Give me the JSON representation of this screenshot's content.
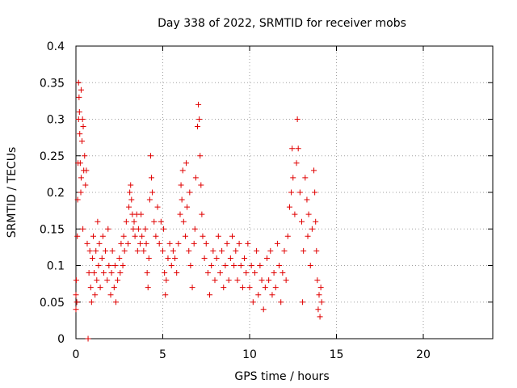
{
  "chart_data": {
    "type": "scatter",
    "title": "Day 338 of 2022, SRMTID for receiver mobs",
    "xlabel": "GPS time / hours",
    "ylabel": "SRMTID / TECUs",
    "xlim": [
      0,
      24
    ],
    "ylim": [
      0,
      0.4
    ],
    "xticks": [
      "0",
      "5",
      "10",
      "15",
      "20"
    ],
    "xtick_values": [
      0,
      5,
      10,
      15,
      20
    ],
    "yticks": [
      "0",
      "0.05",
      "0.1",
      "0.15",
      "0.2",
      "0.25",
      "0.3",
      "0.35",
      "0.4"
    ],
    "ytick_values": [
      0,
      0.05,
      0.1,
      0.15,
      0.2,
      0.25,
      0.3,
      0.35,
      0.4
    ],
    "grid": true,
    "marker": "+",
    "color": "#e00000",
    "series": [
      {
        "name": "SRMTID",
        "points": [
          [
            0.0,
            0.04
          ],
          [
            0.0,
            0.06
          ],
          [
            0.02,
            0.08
          ],
          [
            0.05,
            0.05
          ],
          [
            0.08,
            0.14
          ],
          [
            0.1,
            0.19
          ],
          [
            0.12,
            0.24
          ],
          [
            0.15,
            0.3
          ],
          [
            0.15,
            0.35
          ],
          [
            0.18,
            0.33
          ],
          [
            0.2,
            0.31
          ],
          [
            0.22,
            0.28
          ],
          [
            0.25,
            0.24
          ],
          [
            0.28,
            0.2
          ],
          [
            0.3,
            0.22
          ],
          [
            0.3,
            0.34
          ],
          [
            0.35,
            0.27
          ],
          [
            0.38,
            0.3
          ],
          [
            0.4,
            0.15
          ],
          [
            0.42,
            0.29
          ],
          [
            0.45,
            0.23
          ],
          [
            0.5,
            0.25
          ],
          [
            0.55,
            0.21
          ],
          [
            0.6,
            0.23
          ],
          [
            0.65,
            0.13
          ],
          [
            0.7,
            0.0
          ],
          [
            0.75,
            0.09
          ],
          [
            0.8,
            0.12
          ],
          [
            0.85,
            0.07
          ],
          [
            0.9,
            0.05
          ],
          [
            0.95,
            0.11
          ],
          [
            1.0,
            0.14
          ],
          [
            1.05,
            0.09
          ],
          [
            1.1,
            0.06
          ],
          [
            1.15,
            0.12
          ],
          [
            1.2,
            0.08
          ],
          [
            1.25,
            0.16
          ],
          [
            1.3,
            0.1
          ],
          [
            1.35,
            0.13
          ],
          [
            1.4,
            0.07
          ],
          [
            1.5,
            0.11
          ],
          [
            1.55,
            0.14
          ],
          [
            1.6,
            0.09
          ],
          [
            1.7,
            0.12
          ],
          [
            1.8,
            0.08
          ],
          [
            1.85,
            0.15
          ],
          [
            1.9,
            0.1
          ],
          [
            2.0,
            0.06
          ],
          [
            2.05,
            0.09
          ],
          [
            2.1,
            0.12
          ],
          [
            2.2,
            0.07
          ],
          [
            2.25,
            0.1
          ],
          [
            2.3,
            0.05
          ],
          [
            2.4,
            0.08
          ],
          [
            2.5,
            0.11
          ],
          [
            2.55,
            0.09
          ],
          [
            2.6,
            0.13
          ],
          [
            2.7,
            0.1
          ],
          [
            2.75,
            0.14
          ],
          [
            2.8,
            0.12
          ],
          [
            2.9,
            0.16
          ],
          [
            3.0,
            0.13
          ],
          [
            3.05,
            0.18
          ],
          [
            3.1,
            0.2
          ],
          [
            3.15,
            0.21
          ],
          [
            3.2,
            0.19
          ],
          [
            3.25,
            0.17
          ],
          [
            3.3,
            0.15
          ],
          [
            3.35,
            0.16
          ],
          [
            3.4,
            0.14
          ],
          [
            3.5,
            0.17
          ],
          [
            3.55,
            0.12
          ],
          [
            3.6,
            0.15
          ],
          [
            3.7,
            0.13
          ],
          [
            3.75,
            0.17
          ],
          [
            3.8,
            0.14
          ],
          [
            3.9,
            0.12
          ],
          [
            4.0,
            0.15
          ],
          [
            4.05,
            0.13
          ],
          [
            4.1,
            0.09
          ],
          [
            4.15,
            0.07
          ],
          [
            4.2,
            0.11
          ],
          [
            4.25,
            0.19
          ],
          [
            4.3,
            0.25
          ],
          [
            4.35,
            0.22
          ],
          [
            4.4,
            0.2
          ],
          [
            4.5,
            0.16
          ],
          [
            4.6,
            0.14
          ],
          [
            4.7,
            0.18
          ],
          [
            4.8,
            0.13
          ],
          [
            4.9,
            0.16
          ],
          [
            5.0,
            0.12
          ],
          [
            5.05,
            0.15
          ],
          [
            5.1,
            0.09
          ],
          [
            5.15,
            0.06
          ],
          [
            5.2,
            0.08
          ],
          [
            5.3,
            0.11
          ],
          [
            5.4,
            0.13
          ],
          [
            5.5,
            0.1
          ],
          [
            5.6,
            0.12
          ],
          [
            5.7,
            0.11
          ],
          [
            5.8,
            0.09
          ],
          [
            5.9,
            0.13
          ],
          [
            6.0,
            0.17
          ],
          [
            6.05,
            0.21
          ],
          [
            6.1,
            0.19
          ],
          [
            6.15,
            0.23
          ],
          [
            6.2,
            0.16
          ],
          [
            6.3,
            0.14
          ],
          [
            6.35,
            0.24
          ],
          [
            6.4,
            0.18
          ],
          [
            6.5,
            0.12
          ],
          [
            6.55,
            0.2
          ],
          [
            6.6,
            0.1
          ],
          [
            6.7,
            0.07
          ],
          [
            6.8,
            0.13
          ],
          [
            6.85,
            0.15
          ],
          [
            6.9,
            0.22
          ],
          [
            7.0,
            0.29
          ],
          [
            7.05,
            0.32
          ],
          [
            7.1,
            0.3
          ],
          [
            7.15,
            0.25
          ],
          [
            7.2,
            0.21
          ],
          [
            7.25,
            0.17
          ],
          [
            7.3,
            0.14
          ],
          [
            7.4,
            0.11
          ],
          [
            7.5,
            0.13
          ],
          [
            7.6,
            0.09
          ],
          [
            7.7,
            0.06
          ],
          [
            7.8,
            0.1
          ],
          [
            7.9,
            0.12
          ],
          [
            8.0,
            0.08
          ],
          [
            8.1,
            0.11
          ],
          [
            8.2,
            0.14
          ],
          [
            8.3,
            0.09
          ],
          [
            8.4,
            0.12
          ],
          [
            8.5,
            0.07
          ],
          [
            8.6,
            0.1
          ],
          [
            8.7,
            0.13
          ],
          [
            8.8,
            0.08
          ],
          [
            8.9,
            0.11
          ],
          [
            9.0,
            0.14
          ],
          [
            9.1,
            0.1
          ],
          [
            9.2,
            0.12
          ],
          [
            9.3,
            0.08
          ],
          [
            9.4,
            0.13
          ],
          [
            9.5,
            0.1
          ],
          [
            9.6,
            0.07
          ],
          [
            9.7,
            0.11
          ],
          [
            9.8,
            0.09
          ],
          [
            9.9,
            0.13
          ],
          [
            10.0,
            0.07
          ],
          [
            10.1,
            0.1
          ],
          [
            10.2,
            0.05
          ],
          [
            10.3,
            0.09
          ],
          [
            10.4,
            0.12
          ],
          [
            10.5,
            0.06
          ],
          [
            10.6,
            0.1
          ],
          [
            10.7,
            0.08
          ],
          [
            10.8,
            0.04
          ],
          [
            10.9,
            0.07
          ],
          [
            11.0,
            0.11
          ],
          [
            11.1,
            0.08
          ],
          [
            11.2,
            0.12
          ],
          [
            11.3,
            0.06
          ],
          [
            11.4,
            0.09
          ],
          [
            11.5,
            0.07
          ],
          [
            11.6,
            0.13
          ],
          [
            11.7,
            0.1
          ],
          [
            11.8,
            0.05
          ],
          [
            11.9,
            0.09
          ],
          [
            12.0,
            0.12
          ],
          [
            12.1,
            0.08
          ],
          [
            12.2,
            0.14
          ],
          [
            12.3,
            0.18
          ],
          [
            12.4,
            0.2
          ],
          [
            12.45,
            0.26
          ],
          [
            12.5,
            0.22
          ],
          [
            12.6,
            0.17
          ],
          [
            12.7,
            0.24
          ],
          [
            12.75,
            0.3
          ],
          [
            12.8,
            0.26
          ],
          [
            12.9,
            0.2
          ],
          [
            13.0,
            0.16
          ],
          [
            13.05,
            0.05
          ],
          [
            13.1,
            0.12
          ],
          [
            13.2,
            0.22
          ],
          [
            13.3,
            0.19
          ],
          [
            13.35,
            0.14
          ],
          [
            13.4,
            0.17
          ],
          [
            13.5,
            0.1
          ],
          [
            13.6,
            0.15
          ],
          [
            13.7,
            0.23
          ],
          [
            13.75,
            0.2
          ],
          [
            13.8,
            0.16
          ],
          [
            13.85,
            0.12
          ],
          [
            13.9,
            0.08
          ],
          [
            13.95,
            0.04
          ],
          [
            14.0,
            0.06
          ],
          [
            14.05,
            0.03
          ],
          [
            14.1,
            0.07
          ],
          [
            14.15,
            0.05
          ]
        ]
      }
    ]
  }
}
